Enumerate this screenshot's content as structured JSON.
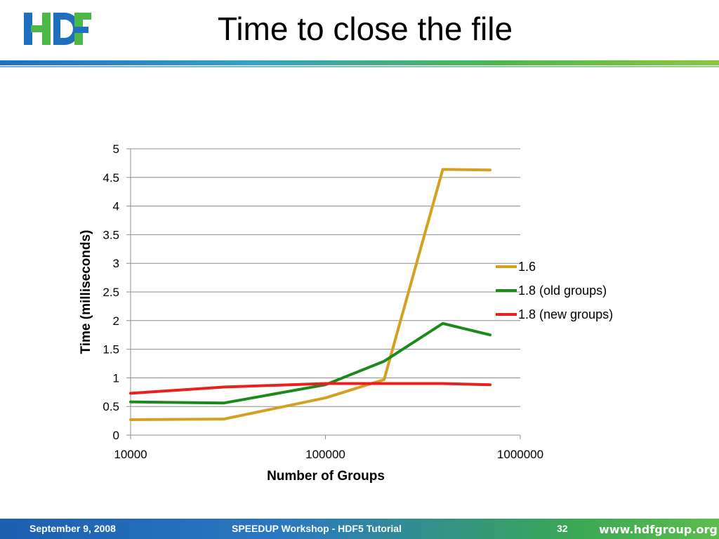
{
  "slide": {
    "title": "Time to close the file",
    "logo_text": "HDF",
    "brand_colors": {
      "blue": "#1f6fbf",
      "green": "#4db848"
    }
  },
  "footer": {
    "date": "September 9, 2008",
    "title": "SPEEDUP Workshop - HDF5 Tutorial",
    "page_number": "32",
    "url": "www.hdfgroup.org"
  },
  "chart_data": {
    "type": "line",
    "title": "",
    "xlabel": "Number of Groups",
    "ylabel": "Time (milliseconds)",
    "x_scale": "log",
    "xlim": [
      10000,
      1000000
    ],
    "ylim": [
      0,
      5
    ],
    "x_ticks": [
      "10000",
      "100000",
      "1000000"
    ],
    "y_ticks": [
      "0",
      "0.5",
      "1",
      "1.5",
      "2",
      "2.5",
      "3",
      "3.5",
      "4",
      "4.5",
      "5"
    ],
    "grid": "horizontal",
    "legend_position": "right",
    "x": [
      10000,
      30000,
      100000,
      200000,
      400000,
      700000
    ],
    "series": [
      {
        "name": "1.6",
        "color": "#d4a020",
        "values": [
          0.27,
          0.28,
          0.65,
          0.97,
          4.64,
          4.63
        ]
      },
      {
        "name": "1.8 (old groups)",
        "color": "#1a8a1a",
        "values": [
          0.58,
          0.56,
          0.88,
          1.29,
          1.95,
          1.75
        ]
      },
      {
        "name": "1.8 (new groups)",
        "color": "#e8201e",
        "values": [
          0.73,
          0.84,
          0.9,
          0.9,
          0.9,
          0.88
        ]
      }
    ]
  }
}
